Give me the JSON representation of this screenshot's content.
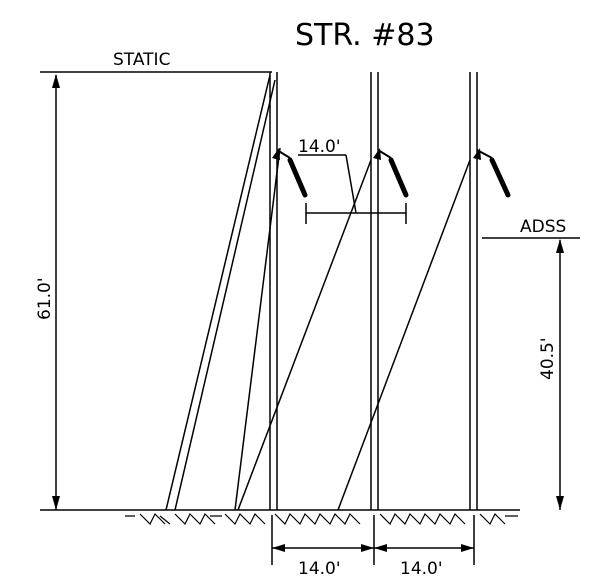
{
  "title": "STR.  #83",
  "labels": {
    "static": "STATIC",
    "adss": "ADSS"
  },
  "dimensions": {
    "total_height": "61.0'",
    "adss_height": "40.5'",
    "insulator_spacing": "14.0'",
    "pole_spacing_left": "14.0'",
    "pole_spacing_right": "14.0'"
  },
  "colors": {
    "line": "#000000",
    "background": "#ffffff"
  }
}
